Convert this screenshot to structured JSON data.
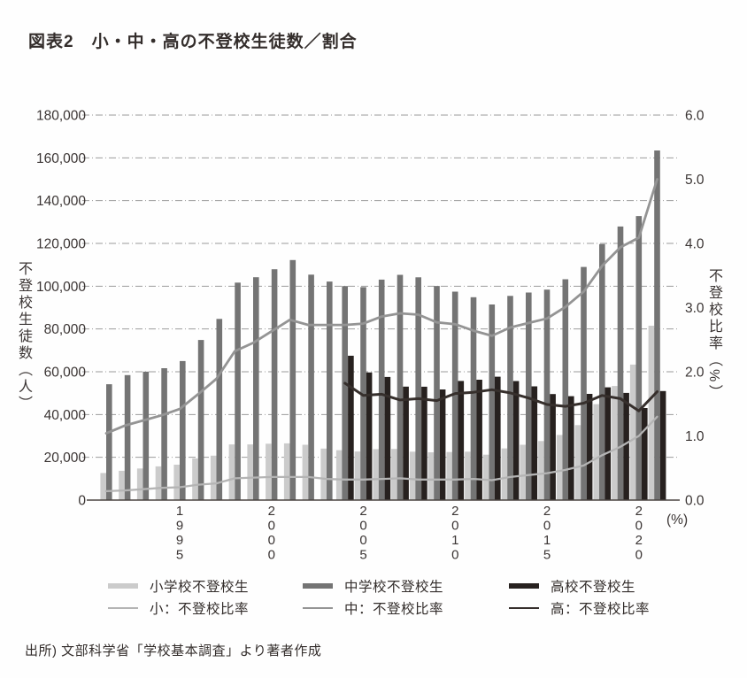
{
  "title": "図表2　小・中・高の不登校生徒数／割合",
  "source": "出所) 文部科学省「学校基本調査」より著者作成",
  "chart_data": {
    "type": "bar+line combo",
    "title": "小・中・高の不登校生徒数／割合",
    "grid": "horizontal dashed lines every 20,000 (left axis)",
    "legend_position": "bottom",
    "years": [
      1991,
      1992,
      1993,
      1994,
      1995,
      1996,
      1997,
      1998,
      1999,
      2000,
      2001,
      2002,
      2003,
      2004,
      2005,
      2006,
      2007,
      2008,
      2009,
      2010,
      2011,
      2012,
      2013,
      2014,
      2015,
      2016,
      2017,
      2018,
      2019,
      2020,
      2021
    ],
    "x_tick_labels": [
      "1995",
      "2000",
      "2005",
      "2010",
      "2015",
      "2020"
    ],
    "left_axis": {
      "title": "不登校生徒数（人）",
      "min": 0,
      "max": 180000,
      "step": 20000,
      "tick_labels": [
        "0",
        "20,000",
        "40,000",
        "60,000",
        "80,000",
        "100,000",
        "120,000",
        "140,000",
        "160,000",
        "180,000"
      ]
    },
    "right_axis": {
      "title": "不登校比率（%）",
      "min": 0,
      "max": 6,
      "step": 1,
      "tick_labels": [
        "0.0",
        "1.0",
        "2.0",
        "3.0",
        "4.0",
        "5.0",
        "6.0"
      ],
      "unit_label": "(%)"
    },
    "series": [
      {
        "name": "小学校不登校生",
        "style": "bar",
        "axis": "left",
        "color": "#cbcbcb",
        "values": [
          12645,
          13710,
          14769,
          15786,
          16569,
          19498,
          20765,
          26017,
          26047,
          26373,
          26511,
          25869,
          24077,
          23318,
          22709,
          23825,
          23927,
          22652,
          22327,
          22463,
          22622,
          21243,
          24175,
          25864,
          27583,
          30448,
          35032,
          44841,
          53350,
          63350,
          81498
        ]
      },
      {
        "name": "中学校不登校生",
        "style": "bar",
        "axis": "left",
        "color": "#747474",
        "values": [
          54172,
          58421,
          60039,
          61663,
          65022,
          74853,
          84701,
          101675,
          104180,
          107913,
          112211,
          105383,
          102149,
          100040,
          99578,
          103069,
          105328,
          104153,
          100105,
          97428,
          94836,
          91446,
          95442,
          97033,
          98408,
          103235,
          108999,
          119687,
          127922,
          132777,
          163442
        ]
      },
      {
        "name": "高校不登校生",
        "style": "bar",
        "axis": "left",
        "color": "#27211f",
        "values": [
          null,
          null,
          null,
          null,
          null,
          null,
          null,
          null,
          null,
          null,
          null,
          null,
          null,
          67500,
          59680,
          57544,
          53041,
          53024,
          51728,
          55707,
          56292,
          57664,
          55657,
          53156,
          49563,
          48565,
          49643,
          52723,
          50100,
          43051,
          50985
        ]
      },
      {
        "name": "小：不登校比率",
        "style": "line",
        "axis": "right",
        "color": "#b4b4b4",
        "values": [
          0.14,
          0.15,
          0.17,
          0.19,
          0.2,
          0.24,
          0.26,
          0.34,
          0.35,
          0.36,
          0.36,
          0.36,
          0.33,
          0.32,
          0.32,
          0.33,
          0.34,
          0.32,
          0.32,
          0.32,
          0.33,
          0.31,
          0.36,
          0.39,
          0.42,
          0.47,
          0.54,
          0.7,
          0.83,
          1.0,
          1.3
        ]
      },
      {
        "name": "中：不登校比率",
        "style": "line",
        "axis": "right",
        "color": "#949494",
        "values": [
          1.04,
          1.16,
          1.24,
          1.32,
          1.42,
          1.65,
          1.89,
          2.32,
          2.45,
          2.63,
          2.81,
          2.73,
          2.73,
          2.73,
          2.75,
          2.86,
          2.91,
          2.89,
          2.77,
          2.74,
          2.64,
          2.56,
          2.69,
          2.76,
          2.83,
          3.01,
          3.25,
          3.65,
          3.94,
          4.09,
          5.0
        ]
      },
      {
        "name": "高：不登校比率",
        "style": "line",
        "axis": "right",
        "color": "#362f2c",
        "values": [
          null,
          null,
          null,
          null,
          null,
          null,
          null,
          null,
          null,
          null,
          null,
          null,
          null,
          1.82,
          1.63,
          1.65,
          1.56,
          1.58,
          1.55,
          1.66,
          1.68,
          1.72,
          1.67,
          1.59,
          1.49,
          1.46,
          1.51,
          1.63,
          1.58,
          1.39,
          1.69
        ]
      }
    ]
  }
}
